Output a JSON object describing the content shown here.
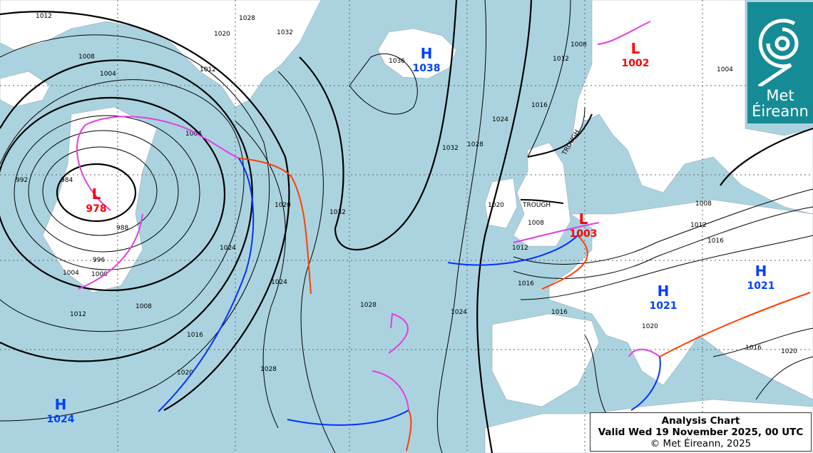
{
  "caption": {
    "title": "Analysis Chart",
    "valid": "Valid Wed 19 November 2025, 00 UTC",
    "copyright": "© Met Éireann, 2025"
  },
  "logo": {
    "line1": "Met",
    "line2": "Éireann",
    "icon": "spiral-logo-icon"
  },
  "colors": {
    "sea": "#aad3df",
    "land": "#ffffff",
    "high": "#0040ff",
    "low": "#ff0000",
    "warm_front": "#ff4000",
    "cold_front": "#0033ff",
    "occluded_front": "#e040e0",
    "logo_bg": "#158b95"
  },
  "pressure_centres": [
    {
      "type": "H",
      "value": "1038"
    },
    {
      "type": "L",
      "value": "1002"
    },
    {
      "type": "L",
      "value": "978"
    },
    {
      "type": "L",
      "value": "1003"
    },
    {
      "type": "H",
      "value": "1021"
    },
    {
      "type": "H",
      "value": "1021"
    },
    {
      "type": "H",
      "value": "1024"
    }
  ],
  "trough_labels": [
    "TROUGH",
    "TROUGH"
  ],
  "isobar_labels": [
    "1012",
    "1020",
    "1028",
    "1032",
    "1008",
    "1004",
    "1036",
    "1032",
    "1024",
    "1016",
    "1012",
    "1008",
    "1004",
    "992",
    "984",
    "988",
    "996",
    "1000",
    "1004",
    "1008",
    "1012",
    "1016",
    "1020",
    "1024",
    "1028",
    "1032",
    "1028",
    "1020",
    "1024",
    "1020",
    "1028",
    "1024",
    "1016",
    "1008",
    "1012",
    "1016",
    "1020",
    "1016",
    "1012",
    "1008",
    "1016",
    "1020",
    "1004",
    "1012"
  ]
}
